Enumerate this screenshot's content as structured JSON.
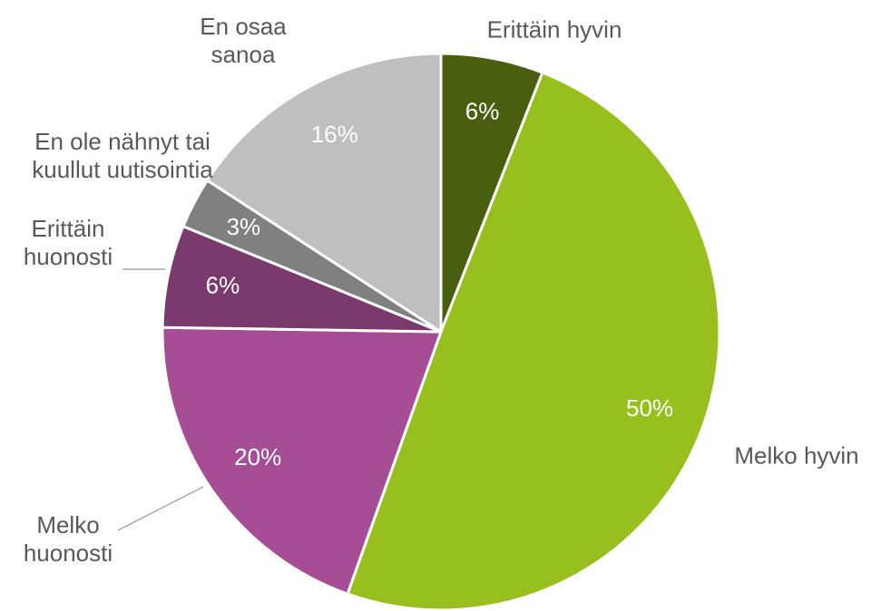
{
  "chart_data": {
    "type": "pie",
    "categories": [
      "Erittäin hyvin",
      "Melko hyvin",
      "Melko huonosti",
      "Erittäin huonosti",
      "En ole nähnyt tai kuullut uutisointia",
      "En osaa sanoa"
    ],
    "values": [
      6,
      50,
      20,
      6,
      3,
      16
    ],
    "value_labels": [
      "6%",
      "50%",
      "20%",
      "6%",
      "3%",
      "16%"
    ],
    "colors": [
      "#4a5e0f",
      "#97bf1d",
      "#a64d96",
      "#7b3a6e",
      "#808080",
      "#bfbfbf"
    ]
  }
}
